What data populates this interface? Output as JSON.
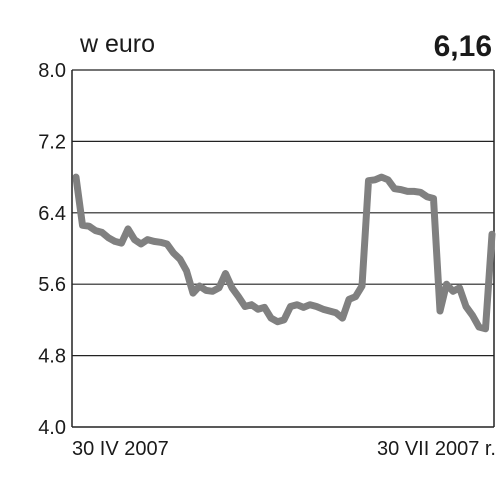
{
  "chart_data": {
    "type": "line",
    "unit_label": "w euro",
    "last_value_label": "6,16",
    "y_ticks": [
      "8.0",
      "7.2",
      "6.4",
      "5.6",
      "4.8",
      "4.0"
    ],
    "ylim": [
      4.0,
      8.0
    ],
    "x_start_label": "30 IV 2007",
    "x_end_label": "30 VII 2007 r.",
    "grid": true,
    "line_color": "#808080",
    "series": [
      {
        "values": [
          6.8,
          6.26,
          6.25,
          6.2,
          6.18,
          6.12,
          6.08,
          6.06,
          6.22,
          6.1,
          6.05,
          6.1,
          6.08,
          6.07,
          6.05,
          5.95,
          5.88,
          5.75,
          5.5,
          5.58,
          5.53,
          5.52,
          5.56,
          5.72,
          5.56,
          5.46,
          5.35,
          5.37,
          5.32,
          5.34,
          5.22,
          5.18,
          5.2,
          5.35,
          5.37,
          5.34,
          5.37,
          5.35,
          5.32,
          5.3,
          5.28,
          5.22,
          5.43,
          5.46,
          5.58,
          6.76,
          6.77,
          6.8,
          6.77,
          6.67,
          6.66,
          6.64,
          6.64,
          6.63,
          6.58,
          6.56,
          5.3,
          5.6,
          5.52,
          5.56,
          5.35,
          5.25,
          5.12,
          5.1,
          6.16
        ]
      }
    ]
  }
}
